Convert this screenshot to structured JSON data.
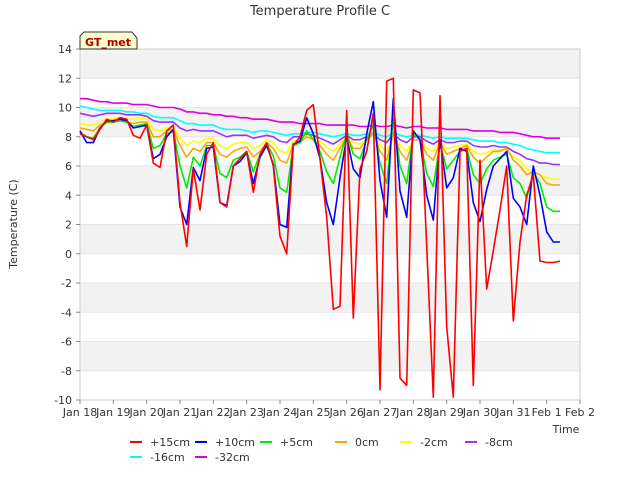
{
  "chart_data": {
    "type": "line",
    "title": "Temperature Profile C",
    "xlabel": "Time",
    "ylabel": "Temperature (C)",
    "station_tag": "GT_met",
    "ylim": [
      -10,
      14
    ],
    "yticks": [
      "-10",
      "-8",
      "-6",
      "-4",
      "-2",
      "0",
      "2",
      "4",
      "6",
      "8",
      "10",
      "12",
      "14"
    ],
    "x_tick_labels": [
      "Jan 18",
      "Jan 19",
      "Jan 20",
      "Jan 21",
      "Jan 22",
      "Jan 23",
      "Jan 24",
      "Jan 25",
      "Jan 26",
      "Jan 27",
      "Jan 28",
      "Jan 29",
      "Jan 30",
      "Jan 31",
      "Feb 1",
      "Feb 2"
    ],
    "grid": true,
    "legend_placement": "bottom",
    "series": [
      {
        "name": "+15cm",
        "color": "#ff0000",
        "x": [
          0.0,
          0.2,
          0.4,
          0.6,
          0.8,
          1.0,
          1.2,
          1.4,
          1.6,
          1.8,
          2.0,
          2.2,
          2.4,
          2.6,
          2.8,
          3.0,
          3.2,
          3.4,
          3.6,
          3.8,
          4.0,
          4.2,
          4.4,
          4.6,
          4.8,
          5.0,
          5.2,
          5.4,
          5.6,
          5.8,
          6.0,
          6.2,
          6.4,
          6.6,
          6.8,
          7.0,
          7.2,
          7.4,
          7.6,
          7.8,
          8.0,
          8.2,
          8.4,
          8.6,
          8.8,
          9.0,
          9.2,
          9.4,
          9.6,
          9.8,
          10.0,
          10.2,
          10.4,
          10.6,
          10.8,
          11.0,
          11.2,
          11.4,
          11.6,
          11.8,
          12.0,
          12.2,
          12.4,
          12.6,
          12.8,
          13.0,
          13.2,
          13.4,
          13.6,
          13.8,
          14.0,
          14.2,
          14.4
        ],
        "y": [
          8.2,
          8.0,
          7.8,
          8.5,
          9.2,
          9.0,
          9.3,
          9.2,
          8.1,
          7.9,
          8.8,
          6.2,
          5.9,
          8.4,
          8.8,
          3.5,
          0.5,
          5.8,
          3.0,
          6.8,
          7.6,
          3.5,
          3.2,
          6.0,
          6.5,
          7.0,
          4.2,
          6.8,
          7.6,
          6.0,
          1.2,
          0.0,
          7.4,
          8.0,
          9.8,
          10.2,
          6.5,
          2.5,
          -3.8,
          -3.6,
          9.8,
          -4.4,
          5.8,
          7.0,
          9.6,
          -9.3,
          11.8,
          12.0,
          -8.5,
          -9.0,
          11.2,
          11.0,
          0.5,
          -9.8,
          10.8,
          -5.0,
          -9.8,
          7.0,
          7.2,
          -9.0,
          6.4,
          -2.4,
          0.2,
          3.0,
          6.0,
          -4.6,
          0.8,
          4.0,
          5.4,
          -0.5,
          -0.6,
          -0.6,
          -0.5
        ]
      },
      {
        "name": "+10cm",
        "color": "#0000ff",
        "x": [
          0.0,
          0.2,
          0.4,
          0.6,
          0.8,
          1.0,
          1.2,
          1.4,
          1.6,
          1.8,
          2.0,
          2.2,
          2.4,
          2.6,
          2.8,
          3.0,
          3.2,
          3.4,
          3.6,
          3.8,
          4.0,
          4.2,
          4.4,
          4.6,
          4.8,
          5.0,
          5.2,
          5.4,
          5.6,
          5.8,
          6.0,
          6.2,
          6.4,
          6.6,
          6.8,
          7.0,
          7.2,
          7.4,
          7.6,
          7.8,
          8.0,
          8.2,
          8.4,
          8.6,
          8.8,
          9.0,
          9.2,
          9.4,
          9.6,
          9.8,
          10.0,
          10.2,
          10.4,
          10.6,
          10.8,
          11.0,
          11.2,
          11.4,
          11.6,
          11.8,
          12.0,
          12.2,
          12.4,
          12.6,
          12.8,
          13.0,
          13.2,
          13.4,
          13.6,
          13.8,
          14.0,
          14.2,
          14.4
        ],
        "y": [
          8.4,
          7.6,
          7.6,
          8.6,
          9.1,
          9.1,
          9.2,
          9.1,
          8.6,
          8.7,
          8.8,
          6.5,
          6.8,
          8.0,
          8.5,
          3.2,
          2.0,
          5.9,
          5.0,
          7.2,
          7.3,
          3.5,
          3.3,
          6.0,
          6.3,
          6.9,
          4.8,
          6.6,
          7.4,
          6.1,
          2.0,
          1.8,
          7.5,
          7.7,
          9.3,
          8.2,
          6.5,
          3.5,
          2.0,
          5.2,
          8.0,
          5.8,
          5.2,
          8.2,
          10.4,
          5.0,
          2.5,
          10.6,
          4.3,
          2.5,
          8.4,
          7.8,
          4.0,
          2.3,
          7.8,
          4.5,
          5.2,
          7.2,
          7.0,
          3.5,
          2.2,
          4.4,
          6.0,
          6.5,
          7.0,
          3.8,
          3.2,
          2.0,
          6.0,
          4.0,
          1.5,
          0.8,
          0.8
        ]
      },
      {
        "name": "+5cm",
        "color": "#00ee00",
        "x": [
          0.0,
          0.2,
          0.4,
          0.6,
          0.8,
          1.0,
          1.2,
          1.4,
          1.6,
          1.8,
          2.0,
          2.2,
          2.4,
          2.6,
          2.8,
          3.0,
          3.2,
          3.4,
          3.6,
          3.8,
          4.0,
          4.2,
          4.4,
          4.6,
          4.8,
          5.0,
          5.2,
          5.4,
          5.6,
          5.8,
          6.0,
          6.2,
          6.4,
          6.6,
          6.8,
          7.0,
          7.2,
          7.4,
          7.6,
          7.8,
          8.0,
          8.2,
          8.4,
          8.6,
          8.8,
          9.0,
          9.2,
          9.4,
          9.6,
          9.8,
          10.0,
          10.2,
          10.4,
          10.6,
          10.8,
          11.0,
          11.2,
          11.4,
          11.6,
          11.8,
          12.0,
          12.2,
          12.4,
          12.6,
          12.8,
          13.0,
          13.2,
          13.4,
          13.6,
          13.8,
          14.0,
          14.2,
          14.4
        ],
        "y": [
          8.3,
          8.0,
          7.9,
          8.6,
          9.0,
          9.0,
          9.1,
          9.0,
          8.7,
          8.8,
          8.9,
          7.2,
          7.4,
          8.2,
          8.4,
          6.0,
          4.5,
          6.6,
          6.0,
          7.4,
          7.4,
          5.5,
          5.2,
          6.4,
          6.6,
          7.0,
          5.6,
          6.8,
          7.5,
          6.7,
          4.5,
          4.2,
          7.4,
          7.6,
          8.4,
          7.8,
          7.0,
          5.6,
          4.8,
          6.6,
          8.2,
          6.8,
          6.5,
          7.8,
          8.8,
          6.2,
          4.8,
          9.2,
          6.0,
          4.8,
          8.2,
          7.8,
          5.5,
          4.6,
          7.6,
          5.8,
          6.4,
          7.0,
          7.2,
          5.4,
          4.8,
          5.8,
          6.4,
          6.6,
          6.8,
          5.2,
          4.8,
          3.8,
          5.6,
          4.8,
          3.2,
          2.9,
          2.9
        ]
      },
      {
        "name": "0cm",
        "color": "#ffa500",
        "x": [
          0.0,
          0.2,
          0.4,
          0.6,
          0.8,
          1.0,
          1.2,
          1.4,
          1.6,
          1.8,
          2.0,
          2.2,
          2.4,
          2.6,
          2.8,
          3.0,
          3.2,
          3.4,
          3.6,
          3.8,
          4.0,
          4.2,
          4.4,
          4.6,
          4.8,
          5.0,
          5.2,
          5.4,
          5.6,
          5.8,
          6.0,
          6.2,
          6.4,
          6.6,
          6.8,
          7.0,
          7.2,
          7.4,
          7.6,
          7.8,
          8.0,
          8.2,
          8.4,
          8.6,
          8.8,
          9.0,
          9.2,
          9.4,
          9.6,
          9.8,
          10.0,
          10.2,
          10.4,
          10.6,
          10.8,
          11.0,
          11.2,
          11.4,
          11.6,
          11.8,
          12.0,
          12.2,
          12.4,
          12.6,
          12.8,
          13.0,
          13.2,
          13.4,
          13.6,
          13.8,
          14.0,
          14.2,
          14.4
        ],
        "y": [
          8.6,
          8.5,
          8.4,
          8.8,
          9.0,
          9.0,
          9.1,
          9.0,
          8.9,
          9.0,
          9.0,
          8.0,
          8.0,
          8.4,
          8.5,
          7.4,
          6.6,
          7.2,
          7.0,
          7.6,
          7.6,
          6.8,
          6.6,
          7.0,
          7.2,
          7.3,
          6.6,
          7.0,
          7.6,
          7.2,
          6.4,
          6.2,
          7.5,
          7.6,
          8.0,
          7.8,
          7.4,
          6.8,
          6.4,
          7.2,
          8.0,
          7.2,
          7.2,
          7.8,
          8.2,
          7.0,
          6.4,
          8.2,
          7.0,
          6.4,
          7.8,
          7.8,
          6.8,
          6.4,
          7.6,
          6.8,
          7.0,
          7.2,
          7.4,
          6.6,
          6.2,
          6.6,
          7.0,
          7.0,
          7.2,
          6.4,
          6.0,
          5.4,
          5.6,
          5.4,
          4.8,
          4.7,
          4.7
        ]
      },
      {
        "name": "-2cm",
        "color": "#ffff00",
        "x": [
          0.0,
          0.2,
          0.4,
          0.6,
          0.8,
          1.0,
          1.2,
          1.4,
          1.6,
          1.8,
          2.0,
          2.2,
          2.4,
          2.6,
          2.8,
          3.0,
          3.2,
          3.4,
          3.6,
          3.8,
          4.0,
          4.2,
          4.4,
          4.6,
          4.8,
          5.0,
          5.2,
          5.4,
          5.6,
          5.8,
          6.0,
          6.2,
          6.4,
          6.6,
          6.8,
          7.0,
          7.2,
          7.4,
          7.6,
          7.8,
          8.0,
          8.2,
          8.4,
          8.6,
          8.8,
          9.0,
          9.2,
          9.4,
          9.6,
          9.8,
          10.0,
          10.2,
          10.4,
          10.6,
          10.8,
          11.0,
          11.2,
          11.4,
          11.6,
          11.8,
          12.0,
          12.2,
          12.4,
          12.6,
          12.8,
          13.0,
          13.2,
          13.4,
          13.6,
          13.8,
          14.0,
          14.2,
          14.4
        ],
        "y": [
          8.9,
          8.8,
          8.8,
          9.0,
          9.2,
          9.2,
          9.3,
          9.2,
          9.2,
          9.3,
          9.2,
          8.5,
          8.4,
          8.6,
          8.7,
          7.9,
          7.4,
          7.7,
          7.6,
          7.9,
          7.9,
          7.4,
          7.2,
          7.5,
          7.6,
          7.6,
          7.2,
          7.4,
          7.8,
          7.6,
          7.0,
          6.9,
          7.7,
          7.8,
          8.1,
          8.0,
          7.7,
          7.3,
          7.0,
          7.5,
          8.0,
          7.6,
          7.5,
          7.9,
          8.2,
          7.4,
          7.0,
          8.1,
          7.4,
          7.0,
          7.8,
          7.8,
          7.2,
          7.0,
          7.6,
          7.2,
          7.3,
          7.4,
          7.5,
          7.0,
          6.8,
          6.9,
          7.1,
          7.1,
          7.2,
          6.6,
          6.4,
          5.8,
          5.6,
          5.4,
          5.2,
          5.1,
          5.1
        ]
      },
      {
        "name": "-8cm",
        "color": "#9933ff",
        "x": [
          0.0,
          0.2,
          0.4,
          0.6,
          0.8,
          1.0,
          1.2,
          1.4,
          1.6,
          1.8,
          2.0,
          2.2,
          2.4,
          2.6,
          2.8,
          3.0,
          3.2,
          3.4,
          3.6,
          3.8,
          4.0,
          4.2,
          4.4,
          4.6,
          4.8,
          5.0,
          5.2,
          5.4,
          5.6,
          5.8,
          6.0,
          6.2,
          6.4,
          6.6,
          6.8,
          7.0,
          7.2,
          7.4,
          7.6,
          7.8,
          8.0,
          8.2,
          8.4,
          8.6,
          8.8,
          9.0,
          9.2,
          9.4,
          9.6,
          9.8,
          10.0,
          10.2,
          10.4,
          10.6,
          10.8,
          11.0,
          11.2,
          11.4,
          11.6,
          11.8,
          12.0,
          12.2,
          12.4,
          12.6,
          12.8,
          13.0,
          13.2,
          13.4,
          13.6,
          13.8,
          14.0,
          14.2,
          14.4
        ],
        "y": [
          9.6,
          9.5,
          9.4,
          9.5,
          9.6,
          9.6,
          9.6,
          9.5,
          9.5,
          9.5,
          9.4,
          9.1,
          9.0,
          9.0,
          9.0,
          8.6,
          8.4,
          8.5,
          8.4,
          8.4,
          8.4,
          8.2,
          8.0,
          8.1,
          8.1,
          8.1,
          7.9,
          8.0,
          8.1,
          8.0,
          7.7,
          7.6,
          8.0,
          8.0,
          8.2,
          8.1,
          7.9,
          7.7,
          7.5,
          7.8,
          8.1,
          7.8,
          7.8,
          8.0,
          8.2,
          7.8,
          7.6,
          8.2,
          7.8,
          7.6,
          8.0,
          8.0,
          7.7,
          7.5,
          7.8,
          7.6,
          7.6,
          7.7,
          7.7,
          7.4,
          7.3,
          7.3,
          7.4,
          7.3,
          7.3,
          7.0,
          6.8,
          6.5,
          6.4,
          6.2,
          6.2,
          6.1,
          6.1
        ]
      },
      {
        "name": "-16cm",
        "color": "#00ffff",
        "x": [
          0.0,
          0.2,
          0.4,
          0.6,
          0.8,
          1.0,
          1.2,
          1.4,
          1.6,
          1.8,
          2.0,
          2.2,
          2.4,
          2.6,
          2.8,
          3.0,
          3.2,
          3.4,
          3.6,
          3.8,
          4.0,
          4.2,
          4.4,
          4.6,
          4.8,
          5.0,
          5.2,
          5.4,
          5.6,
          5.8,
          6.0,
          6.2,
          6.4,
          6.6,
          6.8,
          7.0,
          7.2,
          7.4,
          7.6,
          7.8,
          8.0,
          8.2,
          8.4,
          8.6,
          8.8,
          9.0,
          9.2,
          9.4,
          9.6,
          9.8,
          10.0,
          10.2,
          10.4,
          10.6,
          10.8,
          11.0,
          11.2,
          11.4,
          11.6,
          11.8,
          12.0,
          12.2,
          12.4,
          12.6,
          12.8,
          13.0,
          13.2,
          13.4,
          13.6,
          13.8,
          14.0,
          14.2,
          14.4
        ],
        "y": [
          10.1,
          10.0,
          9.9,
          9.8,
          9.8,
          9.8,
          9.8,
          9.7,
          9.7,
          9.6,
          9.6,
          9.4,
          9.3,
          9.3,
          9.3,
          9.1,
          8.9,
          8.9,
          8.8,
          8.8,
          8.8,
          8.6,
          8.5,
          8.5,
          8.5,
          8.4,
          8.3,
          8.4,
          8.4,
          8.3,
          8.2,
          8.1,
          8.2,
          8.2,
          8.3,
          8.3,
          8.2,
          8.1,
          8.0,
          8.1,
          8.2,
          8.1,
          8.1,
          8.2,
          8.3,
          8.1,
          8.0,
          8.3,
          8.1,
          8.0,
          8.1,
          8.1,
          8.0,
          7.9,
          8.0,
          7.9,
          7.9,
          7.9,
          7.9,
          7.8,
          7.7,
          7.7,
          7.7,
          7.6,
          7.6,
          7.5,
          7.4,
          7.2,
          7.1,
          7.0,
          6.9,
          6.9,
          6.9
        ]
      },
      {
        "name": "-32cm",
        "color": "#dd00dd",
        "x": [
          0.0,
          0.2,
          0.4,
          0.6,
          0.8,
          1.0,
          1.2,
          1.4,
          1.6,
          1.8,
          2.0,
          2.2,
          2.4,
          2.6,
          2.8,
          3.0,
          3.2,
          3.4,
          3.6,
          3.8,
          4.0,
          4.2,
          4.4,
          4.6,
          4.8,
          5.0,
          5.2,
          5.4,
          5.6,
          5.8,
          6.0,
          6.2,
          6.4,
          6.6,
          6.8,
          7.0,
          7.2,
          7.4,
          7.6,
          7.8,
          8.0,
          8.2,
          8.4,
          8.6,
          8.8,
          9.0,
          9.2,
          9.4,
          9.6,
          9.8,
          10.0,
          10.2,
          10.4,
          10.6,
          10.8,
          11.0,
          11.2,
          11.4,
          11.6,
          11.8,
          12.0,
          12.2,
          12.4,
          12.6,
          12.8,
          13.0,
          13.2,
          13.4,
          13.6,
          13.8,
          14.0,
          14.2,
          14.4
        ],
        "y": [
          10.6,
          10.6,
          10.5,
          10.4,
          10.4,
          10.3,
          10.3,
          10.3,
          10.2,
          10.2,
          10.2,
          10.1,
          10.0,
          10.0,
          10.0,
          9.9,
          9.7,
          9.7,
          9.6,
          9.6,
          9.5,
          9.5,
          9.4,
          9.4,
          9.3,
          9.3,
          9.2,
          9.2,
          9.2,
          9.1,
          9.0,
          9.0,
          9.0,
          8.9,
          8.9,
          8.9,
          8.9,
          8.8,
          8.8,
          8.8,
          8.8,
          8.8,
          8.7,
          8.7,
          8.8,
          8.7,
          8.7,
          8.8,
          8.7,
          8.6,
          8.7,
          8.7,
          8.6,
          8.6,
          8.6,
          8.5,
          8.5,
          8.5,
          8.5,
          8.4,
          8.4,
          8.4,
          8.4,
          8.3,
          8.3,
          8.3,
          8.2,
          8.1,
          8.0,
          8.0,
          7.9,
          7.9,
          7.9
        ]
      }
    ]
  }
}
